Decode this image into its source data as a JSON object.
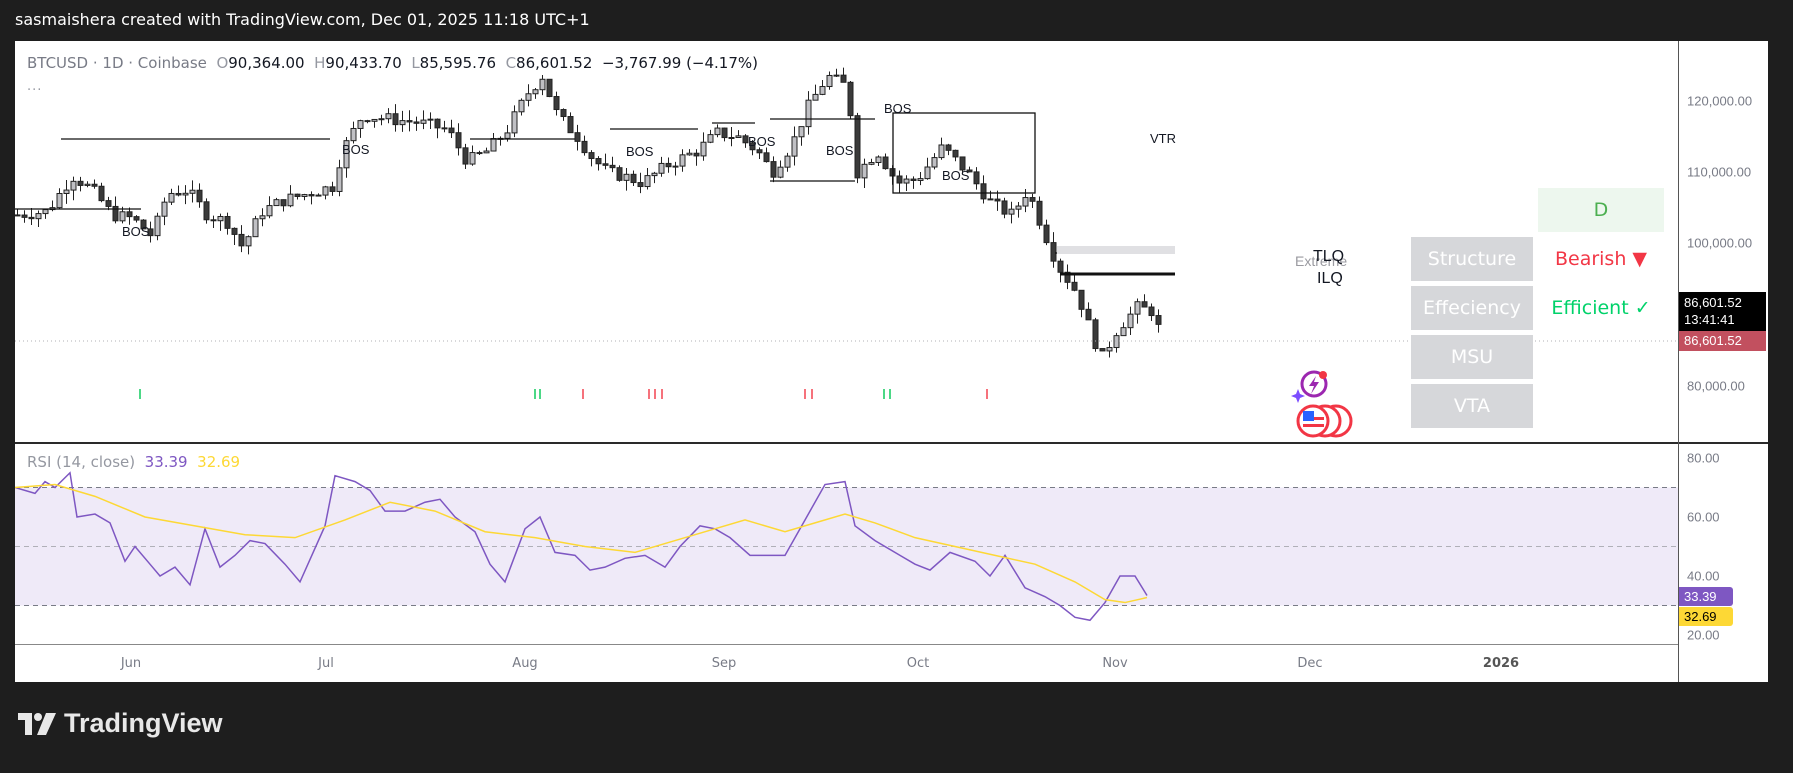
{
  "header": {
    "caption": "sasmaishera created with TradingView.com, Dec 01, 2025 11:18 UTC+1"
  },
  "symbol": {
    "name": "BTCUSD · 1D · Coinbase",
    "open_label": "O",
    "open": "90,364.00",
    "high_label": "H",
    "high": "90,433.70",
    "low_label": "L",
    "low": "85,595.76",
    "close_label": "C",
    "close": "86,601.52",
    "change": "−3,767.99 (−4.17%)",
    "more": "..."
  },
  "price_scale": {
    "ticks": [
      "120,000.00",
      "110,000.00",
      "100,000.00",
      "80,000.00"
    ],
    "last_price": "86,601.52",
    "countdown": "13:41:41",
    "close_tag": "86,601.52"
  },
  "rsi": {
    "title": "RSI (14, close)",
    "value": "33.39",
    "ma_value": "32.69",
    "ticks": [
      "80.00",
      "60.00",
      "40.00",
      "20.00"
    ],
    "colors": {
      "rsi": "#7e57c2",
      "ma": "#fdd835",
      "band": "#efeaf8"
    }
  },
  "time_axis": {
    "labels": [
      "Jun",
      "Jul",
      "Aug",
      "Sep",
      "Oct",
      "Nov",
      "Dec",
      "2026"
    ]
  },
  "annotations": {
    "bos": "BOS",
    "vtr": "VTR",
    "tlq": "TLQ",
    "ilq": "ILQ",
    "extreme": "Extreme"
  },
  "status_table": {
    "timeframe": "D",
    "rows": [
      {
        "label": "Structure",
        "value": "Bearish ▼",
        "color": "#f23645"
      },
      {
        "label": "Effeciency",
        "value": "Efficient ✓",
        "color": "#00c853"
      },
      {
        "label": "MSU",
        "value": ""
      },
      {
        "label": "VTA",
        "value": ""
      }
    ]
  },
  "colors": {
    "bull_candle": "#c0c0c4",
    "bear_candle": "#3a3a3a",
    "up_marker": "#00c853",
    "down_marker": "#f23645",
    "last_price_tag": "#000000",
    "close_tag": "#c2505f"
  },
  "footer": {
    "brand": "TradingView"
  },
  "chart_data": {
    "type": "candlestick",
    "title": "BTCUSD · 1D · Coinbase",
    "ohlc_last": {
      "open": 90364.0,
      "high": 90433.7,
      "low": 85595.76,
      "close": 86601.52,
      "change": -3767.99,
      "change_pct": -4.17
    },
    "x_labels": [
      "Jun",
      "Jul",
      "Aug",
      "Sep",
      "Oct",
      "Nov",
      "Dec",
      "2026"
    ],
    "y_ticks": [
      120000,
      110000,
      100000,
      80000
    ],
    "ylim": [
      75000,
      126000
    ],
    "approx_close_path": [
      {
        "month": "late May",
        "price": 104000
      },
      {
        "month": "early Jun",
        "price": 108000
      },
      {
        "month": "mid Jun",
        "price": 104000
      },
      {
        "month": "late Jun",
        "price": 107000
      },
      {
        "month": "mid Jul",
        "price": 118000
      },
      {
        "month": "early Aug",
        "price": 114000
      },
      {
        "month": "mid Aug",
        "price": 123000
      },
      {
        "month": "early Sep",
        "price": 111000
      },
      {
        "month": "late Sep",
        "price": 109000
      },
      {
        "month": "early Oct",
        "price": 124000
      },
      {
        "month": "mid Oct",
        "price": 110000
      },
      {
        "month": "late Oct",
        "price": 114000
      },
      {
        "month": "early Nov",
        "price": 103000
      },
      {
        "month": "late Nov",
        "price": 84000
      },
      {
        "month": "Dec 01",
        "price": 86601.52
      }
    ],
    "rsi": {
      "period": 14,
      "source": "close",
      "last": 33.39,
      "ma_last": 32.69,
      "bands": [
        70,
        50,
        30
      ],
      "y_ticks": [
        80,
        60,
        40,
        20
      ]
    },
    "legend": [
      "RSI (14, close)",
      "33.39",
      "32.69"
    ]
  }
}
